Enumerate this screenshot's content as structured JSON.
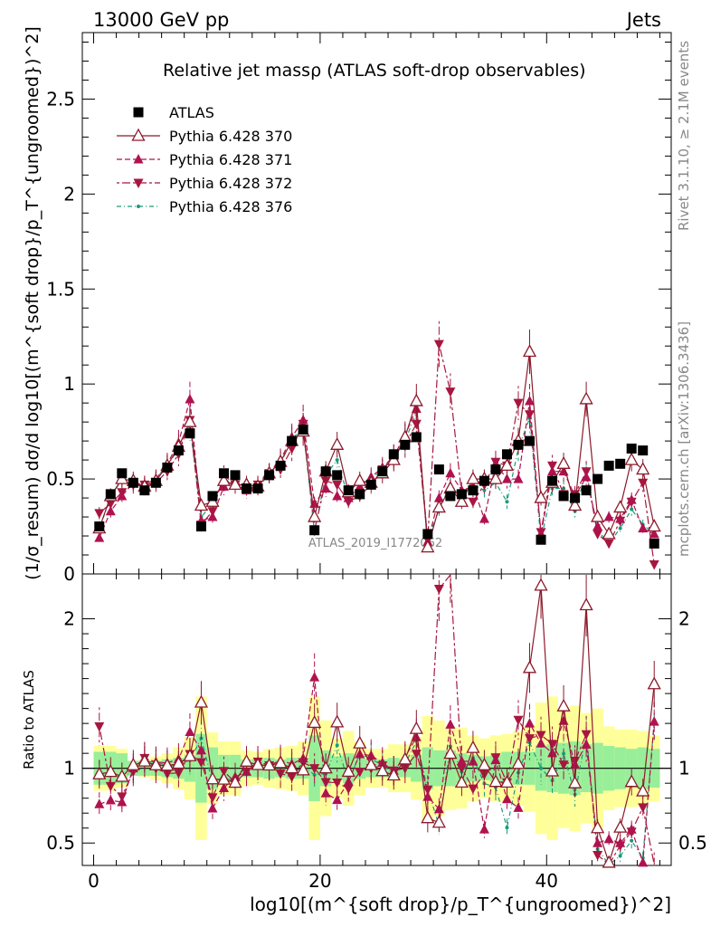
{
  "header": {
    "energy_label": "13000 GeV pp",
    "category_label": "Jets"
  },
  "side_labels": {
    "rivet": "Rivet 3.1.10, ≥ 2.1M events",
    "mcplots": "mcplots.cern.ch [arXiv:1306.3436]"
  },
  "watermark": "ATLAS_2019_I1772062",
  "chart_data": {
    "type": "scatter",
    "title": "Relative jet massρ (ATLAS soft-drop observables)",
    "xlabel": "log10[(m^{soft drop}/p_T^{ungroomed})^2]",
    "ylabel": "(1/σ_resum) dσ/d log10[(m^{soft drop}/p_T^{ungroomed})^2]",
    "ratio_ylabel": "Ratio to ATLAS",
    "xlim": [
      -1,
      51
    ],
    "ylim": [
      0,
      2.85
    ],
    "ratio_ylim": [
      0.35,
      2.3
    ],
    "x_ticks": [
      0,
      20,
      40
    ],
    "y_ticks": [
      0.5,
      1,
      1.5,
      2,
      2.5
    ],
    "ratio_y_ticks": [
      0.5,
      1,
      2
    ],
    "legend_position": "top-left",
    "x": [
      0.5,
      1.5,
      2.5,
      3.5,
      4.5,
      5.5,
      6.5,
      7.5,
      8.5,
      9.5,
      10.5,
      11.5,
      12.5,
      13.5,
      14.5,
      15.5,
      16.5,
      17.5,
      18.5,
      19.5,
      20.5,
      21.5,
      22.5,
      23.5,
      24.5,
      25.5,
      26.5,
      27.5,
      28.5,
      29.5,
      30.5,
      31.5,
      32.5,
      33.5,
      34.5,
      35.5,
      36.5,
      37.5,
      38.5,
      39.5,
      40.5,
      41.5,
      42.5,
      43.5,
      44.5,
      45.5,
      46.5,
      47.5,
      48.5,
      49.5
    ],
    "series": [
      {
        "name": "ATLAS",
        "color": "#000000",
        "marker": "square",
        "values": [
          0.25,
          0.42,
          0.53,
          0.48,
          0.44,
          0.48,
          0.56,
          0.65,
          0.74,
          0.25,
          0.41,
          0.53,
          0.52,
          0.45,
          0.45,
          0.52,
          0.57,
          0.7,
          0.76,
          0.23,
          0.54,
          0.52,
          0.44,
          0.42,
          0.47,
          0.54,
          0.63,
          0.68,
          0.72,
          0.21,
          0.55,
          0.41,
          0.42,
          0.44,
          0.49,
          0.55,
          0.63,
          0.68,
          0.7,
          0.18,
          0.49,
          0.41,
          0.4,
          0.44,
          0.5,
          0.57,
          0.58,
          0.66,
          0.65,
          0.16
        ]
      },
      {
        "name": "Pythia 6.428 370",
        "color": "#8b1a2b",
        "marker": "triangle-up-open",
        "values": [
          0.24,
          0.41,
          0.5,
          0.49,
          0.46,
          0.49,
          0.57,
          0.67,
          0.8,
          0.36,
          0.38,
          0.49,
          0.47,
          0.47,
          0.46,
          0.53,
          0.59,
          0.7,
          0.75,
          0.3,
          0.54,
          0.68,
          0.43,
          0.49,
          0.48,
          0.53,
          0.6,
          0.72,
          0.91,
          0.14,
          0.35,
          0.45,
          0.38,
          0.5,
          0.5,
          0.5,
          0.57,
          0.7,
          1.17,
          0.4,
          0.48,
          0.58,
          0.36,
          0.92,
          0.3,
          0.21,
          0.35,
          0.6,
          0.55,
          0.25
        ]
      },
      {
        "name": "Pythia 6.428 371",
        "color": "#b0124f",
        "marker": "triangle-up",
        "values": [
          0.19,
          0.33,
          0.41,
          0.48,
          0.47,
          0.5,
          0.58,
          0.69,
          0.92,
          0.28,
          0.3,
          0.46,
          0.49,
          0.44,
          0.47,
          0.53,
          0.6,
          0.72,
          0.81,
          0.37,
          0.45,
          0.41,
          0.4,
          0.46,
          0.51,
          0.56,
          0.62,
          0.73,
          0.87,
          0.17,
          0.4,
          0.53,
          0.44,
          0.46,
          0.29,
          0.58,
          0.5,
          0.5,
          0.91,
          0.21,
          0.54,
          0.54,
          0.41,
          0.51,
          0.25,
          0.3,
          0.29,
          0.39,
          0.24,
          0.21
        ]
      },
      {
        "name": "Pythia 6.428 372",
        "color": "#a8163f",
        "marker": "triangle-down",
        "values": [
          0.32,
          0.37,
          0.43,
          0.47,
          0.47,
          0.48,
          0.54,
          0.63,
          0.81,
          0.26,
          0.33,
          0.52,
          0.47,
          0.44,
          0.47,
          0.53,
          0.55,
          0.66,
          0.79,
          0.23,
          0.49,
          0.47,
          0.38,
          0.41,
          0.47,
          0.55,
          0.62,
          0.68,
          0.79,
          0.18,
          1.21,
          0.96,
          0.42,
          0.38,
          0.47,
          0.59,
          0.57,
          0.9,
          0.84,
          0.22,
          0.57,
          0.42,
          0.42,
          0.54,
          0.21,
          0.16,
          0.28,
          0.38,
          0.48,
          0.05
        ]
      },
      {
        "name": "Pythia 6.428 376",
        "color": "#1a9b7a",
        "marker": "dot",
        "values": [
          0.24,
          0.4,
          0.5,
          0.47,
          0.46,
          0.5,
          0.57,
          0.66,
          0.78,
          0.3,
          0.37,
          0.5,
          0.47,
          0.46,
          0.45,
          0.53,
          0.58,
          0.71,
          0.77,
          0.22,
          0.52,
          0.6,
          0.4,
          0.46,
          0.5,
          0.55,
          0.61,
          0.7,
          0.85,
          0.18,
          0.34,
          0.47,
          0.41,
          0.47,
          0.44,
          0.48,
          0.38,
          0.66,
          0.82,
          0.18,
          0.45,
          0.45,
          0.33,
          0.54,
          0.23,
          0.16,
          0.24,
          0.34,
          0.26,
          0.21
        ]
      }
    ],
    "ratio_band_stat": [
      0.11,
      0.11,
      0.1,
      0.05,
      0.05,
      0.05,
      0.06,
      0.07,
      0.09,
      0.23,
      0.14,
      0.09,
      0.09,
      0.06,
      0.06,
      0.07,
      0.06,
      0.07,
      0.07,
      0.22,
      0.12,
      0.08,
      0.1,
      0.07,
      0.06,
      0.06,
      0.07,
      0.06,
      0.09,
      0.14,
      0.12,
      0.12,
      0.1,
      0.09,
      0.08,
      0.09,
      0.11,
      0.11,
      0.11,
      0.15,
      0.16,
      0.17,
      0.18,
      0.16,
      0.17,
      0.15,
      0.14,
      0.13,
      0.14,
      0.13
    ],
    "ratio_band_total": [
      0.15,
      0.15,
      0.13,
      0.05,
      0.06,
      0.08,
      0.1,
      0.14,
      0.21,
      0.48,
      0.24,
      0.18,
      0.18,
      0.12,
      0.11,
      0.13,
      0.14,
      0.15,
      0.18,
      0.48,
      0.32,
      0.2,
      0.25,
      0.18,
      0.13,
      0.13,
      0.16,
      0.16,
      0.21,
      0.35,
      0.32,
      0.28,
      0.27,
      0.22,
      0.2,
      0.22,
      0.23,
      0.25,
      0.29,
      0.44,
      0.48,
      0.4,
      0.42,
      0.37,
      0.4,
      0.28,
      0.26,
      0.26,
      0.25,
      0.22
    ]
  }
}
